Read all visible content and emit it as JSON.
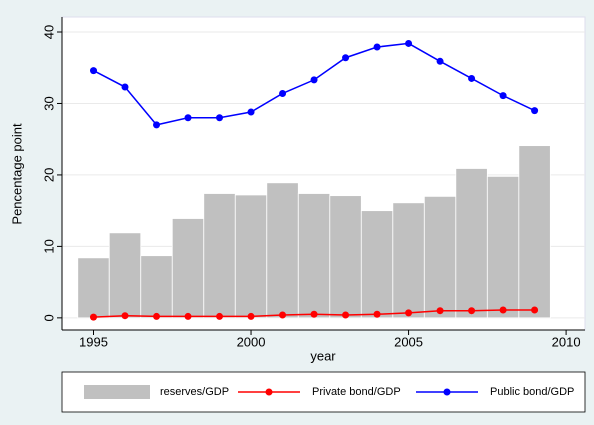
{
  "chart_data": {
    "type": "bar",
    "y_label": "Pencentage point",
    "x_label": "year",
    "x": [
      1995,
      1996,
      1997,
      1998,
      1999,
      2000,
      2001,
      2002,
      2003,
      2004,
      2005,
      2006,
      2007,
      2008,
      2009
    ],
    "series": [
      {
        "name": "reserves/GDP",
        "type": "bar",
        "color": "#c0c0c0",
        "values": [
          8.4,
          11.9,
          8.7,
          13.9,
          17.4,
          17.2,
          18.9,
          17.4,
          17.1,
          15.0,
          16.1,
          17.0,
          20.9,
          19.8,
          24.1
        ]
      },
      {
        "name": "Private bond/GDP",
        "type": "line",
        "color": "#ff0000",
        "values": [
          0.1,
          0.3,
          0.2,
          0.2,
          0.2,
          0.2,
          0.4,
          0.5,
          0.4,
          0.5,
          0.7,
          1.0,
          1.0,
          1.1,
          1.1
        ]
      },
      {
        "name": "Public bond/GDP",
        "type": "line",
        "color": "#0000ff",
        "values": [
          34.6,
          32.3,
          27.0,
          28.0,
          28.0,
          28.8,
          31.4,
          33.3,
          36.4,
          37.9,
          38.4,
          35.9,
          33.5,
          31.1,
          29.0
        ]
      }
    ],
    "xlim": [
      1994.0,
      2010.6
    ],
    "xticks": [
      1995,
      2000,
      2005,
      2010
    ],
    "ylim": [
      -1.7,
      42.1
    ],
    "yticks": [
      0,
      10,
      20,
      30,
      40
    ],
    "grid": true,
    "legend": "bottom"
  }
}
